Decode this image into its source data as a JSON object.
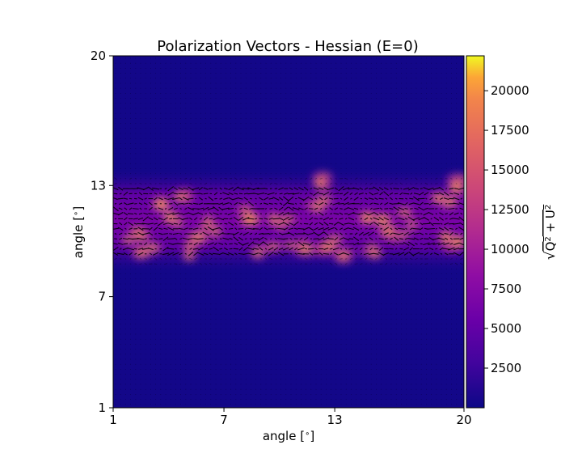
{
  "chart_data": {
    "type": "heatmap",
    "title": "Polarization Vectors - Hessian (E=0)",
    "xlabel": "angle [$^\\circ$]",
    "ylabel": "angle [$^\\circ$]",
    "x_ticks": [
      "1",
      "7",
      "13",
      "20"
    ],
    "y_ticks": [
      "1",
      "7",
      "13",
      "20"
    ],
    "xlim": [
      1,
      20
    ],
    "ylim": [
      1,
      20
    ],
    "colormap": "plasma",
    "colorbar": {
      "label": "$\\sqrt{Q^2+U^2}$",
      "ticks": [
        "2500",
        "5000",
        "7500",
        "10000",
        "12500",
        "15000",
        "17500",
        "20000"
      ],
      "tick_values": [
        2500,
        5000,
        7500,
        10000,
        12500,
        15000,
        17500,
        20000
      ],
      "range": [
        0,
        22200
      ]
    },
    "overlay": "polarization vectors",
    "bright_band_y_range": [
      9.2,
      12.5
    ]
  }
}
